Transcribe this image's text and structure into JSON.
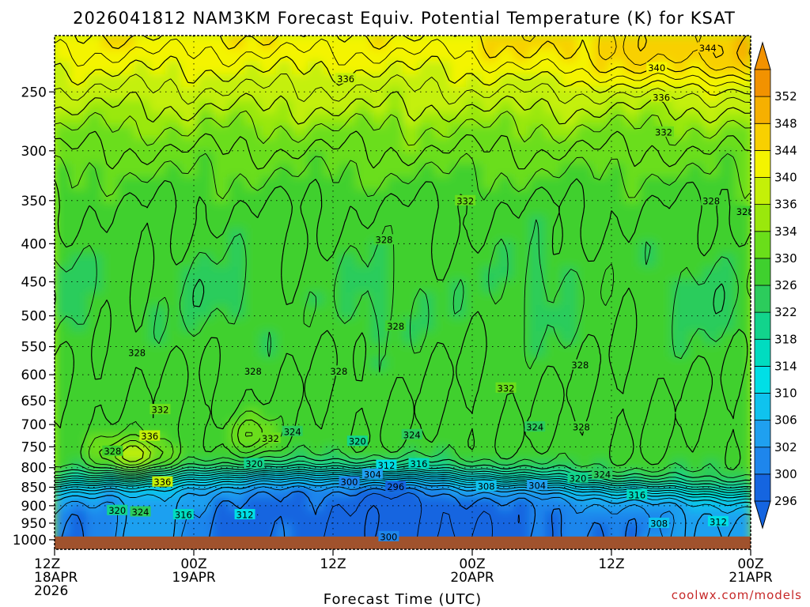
{
  "chart_data": {
    "type": "heatmap",
    "title": "2026041812 NAM3KM Forecast Equiv. Potential Temperature (K) for KSAT",
    "xlabel": "Forecast Time (UTC)",
    "ylabel": "",
    "y_axis": {
      "scale": "log-pressure",
      "range": [
        1030,
        210
      ],
      "ticks": [
        250,
        300,
        350,
        400,
        450,
        500,
        550,
        600,
        650,
        700,
        750,
        800,
        850,
        900,
        950,
        1000
      ],
      "tick_labels": [
        "250",
        "300",
        "350",
        "400",
        "450",
        "500",
        "550",
        "600",
        "650",
        "700",
        "750",
        "800",
        "850",
        "900",
        "950",
        "1000"
      ]
    },
    "x_axis": {
      "range_hours": [
        0,
        60
      ],
      "ticks": [
        {
          "hour": 0,
          "lines": [
            "12Z",
            "18APR",
            "2026"
          ]
        },
        {
          "hour": 12,
          "lines": [
            "00Z",
            "19APR"
          ]
        },
        {
          "hour": 24,
          "lines": [
            "12Z"
          ]
        },
        {
          "hour": 36,
          "lines": [
            "00Z",
            "20APR"
          ]
        },
        {
          "hour": 48,
          "lines": [
            "12Z"
          ]
        },
        {
          "hour": 60,
          "lines": [
            "00Z",
            "21APR"
          ]
        }
      ]
    },
    "grid": true,
    "colorbar": {
      "placement": "right",
      "levels": [
        296,
        300,
        302,
        306,
        310,
        314,
        318,
        322,
        326,
        330,
        334,
        336,
        340,
        344,
        348,
        352
      ],
      "colors": [
        "#1565e0",
        "#1e86ec",
        "#1fa0f0",
        "#0fc3ee",
        "#00dfe6",
        "#00dcc0",
        "#12d48c",
        "#2ccc5c",
        "#3fd02e",
        "#6ade1a",
        "#9ae80c",
        "#c4f008",
        "#f4f400",
        "#f8d000",
        "#f6b000",
        "#f29200"
      ]
    },
    "contour_labels": [
      {
        "value": "344",
        "hour": 56.3,
        "p": 218
      },
      {
        "value": "340",
        "hour": 51.9,
        "p": 232
      },
      {
        "value": "336",
        "hour": 25.1,
        "p": 240
      },
      {
        "value": "336",
        "hour": 52.3,
        "p": 254
      },
      {
        "value": "332",
        "hour": 52.5,
        "p": 283
      },
      {
        "value": "332",
        "hour": 35.4,
        "p": 350
      },
      {
        "value": "328",
        "hour": 56.6,
        "p": 350
      },
      {
        "value": "328",
        "hour": 59.5,
        "p": 362
      },
      {
        "value": "328",
        "hour": 28.4,
        "p": 395
      },
      {
        "value": "328",
        "hour": 29.4,
        "p": 516
      },
      {
        "value": "328",
        "hour": 7.1,
        "p": 560
      },
      {
        "value": "328",
        "hour": 45.3,
        "p": 582
      },
      {
        "value": "328",
        "hour": 17.1,
        "p": 593
      },
      {
        "value": "328",
        "hour": 24.5,
        "p": 593
      },
      {
        "value": "332",
        "hour": 38.9,
        "p": 625
      },
      {
        "value": "332",
        "hour": 9.1,
        "p": 668
      },
      {
        "value": "324",
        "hour": 41.4,
        "p": 705
      },
      {
        "value": "328",
        "hour": 45.4,
        "p": 705
      },
      {
        "value": "324",
        "hour": 20.5,
        "p": 715
      },
      {
        "value": "324",
        "hour": 30.8,
        "p": 722
      },
      {
        "value": "336",
        "hour": 8.2,
        "p": 725
      },
      {
        "value": "332",
        "hour": 18.6,
        "p": 730
      },
      {
        "value": "320",
        "hour": 26.1,
        "p": 737
      },
      {
        "value": "328",
        "hour": 5.0,
        "p": 760
      },
      {
        "value": "312",
        "hour": 28.6,
        "p": 794
      },
      {
        "value": "316",
        "hour": 31.4,
        "p": 790
      },
      {
        "value": "320",
        "hour": 17.2,
        "p": 790
      },
      {
        "value": "304",
        "hour": 27.4,
        "p": 816
      },
      {
        "value": "324",
        "hour": 47.2,
        "p": 816
      },
      {
        "value": "320",
        "hour": 45.1,
        "p": 826
      },
      {
        "value": "336",
        "hour": 9.3,
        "p": 836
      },
      {
        "value": "300",
        "hour": 25.4,
        "p": 836
      },
      {
        "value": "296",
        "hour": 29.4,
        "p": 848
      },
      {
        "value": "308",
        "hour": 37.2,
        "p": 847
      },
      {
        "value": "304",
        "hour": 41.6,
        "p": 845
      },
      {
        "value": "316",
        "hour": 50.2,
        "p": 870
      },
      {
        "value": "320",
        "hour": 5.4,
        "p": 913
      },
      {
        "value": "324",
        "hour": 7.4,
        "p": 917
      },
      {
        "value": "316",
        "hour": 11.1,
        "p": 925
      },
      {
        "value": "312",
        "hour": 16.4,
        "p": 925
      },
      {
        "value": "308",
        "hour": 52.1,
        "p": 950
      },
      {
        "value": "312",
        "hour": 57.2,
        "p": 945
      },
      {
        "value": "300",
        "hour": 28.8,
        "p": 990
      }
    ],
    "ground": {
      "color": "#a0522d",
      "below_pressure": 990
    }
  },
  "credit": "coolwx.com/models"
}
